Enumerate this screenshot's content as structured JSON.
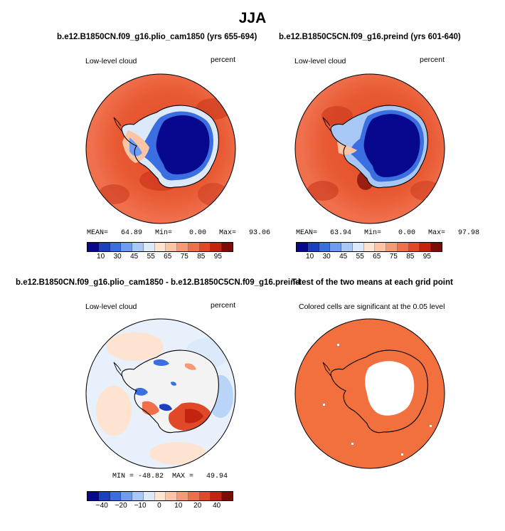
{
  "title": "JJA",
  "panels": [
    {
      "title": "b.e12.B1850CN.f09_g16.plio_cam1850 (yrs 655-694)",
      "left_label": "Low-level cloud",
      "right_label": "percent",
      "stats": "MEAN=   64.89   Min=    0.00   Max=   93.06",
      "colorbar_labels": [
        "10",
        "30",
        "45",
        "55",
        "65",
        "75",
        "85",
        "95"
      ]
    },
    {
      "title": "b.e12.B1850C5CN.f09_g16.preind (yrs 601-640)",
      "left_label": "Low-level cloud",
      "right_label": "percent",
      "stats": "MEAN=   63.94   Min=    0.00   Max=   97.98",
      "colorbar_labels": [
        "10",
        "30",
        "45",
        "55",
        "65",
        "75",
        "85",
        "95"
      ]
    },
    {
      "title": "b.e12.B1850CN.f09_g16.plio_cam1850 - b.e12.B1850C5CN.f09_g16.preind",
      "left_label": "Low-level cloud",
      "right_label": "percent",
      "stats": "MIN = -48.82  MAX =   49.94",
      "colorbar_labels": [
        "−40",
        "−20",
        "−10",
        "0",
        "10",
        "20",
        "40"
      ]
    },
    {
      "title": "T-test of the two means at each grid point",
      "subtitle": "Colored cells are significant at the 0.05 level"
    }
  ],
  "colors": {
    "abs_scale": [
      "#08088f",
      "#1a3fbf",
      "#3b6ee0",
      "#6f9cf0",
      "#a7c8f5",
      "#dbe9fb",
      "#fde3d0",
      "#fbc4a4",
      "#f59a75",
      "#ef6f4b",
      "#e04827",
      "#c22410",
      "#7d0c05"
    ],
    "diff_scale": [
      "#08088f",
      "#1a3fbf",
      "#3b6ee0",
      "#6f9cf0",
      "#a7c8f5",
      "#dbe9fb",
      "#fde3d0",
      "#fbc4a4",
      "#f59a75",
      "#ef6f4b",
      "#e04827",
      "#c22410",
      "#7d0c05"
    ],
    "significance": "#f2703e"
  }
}
